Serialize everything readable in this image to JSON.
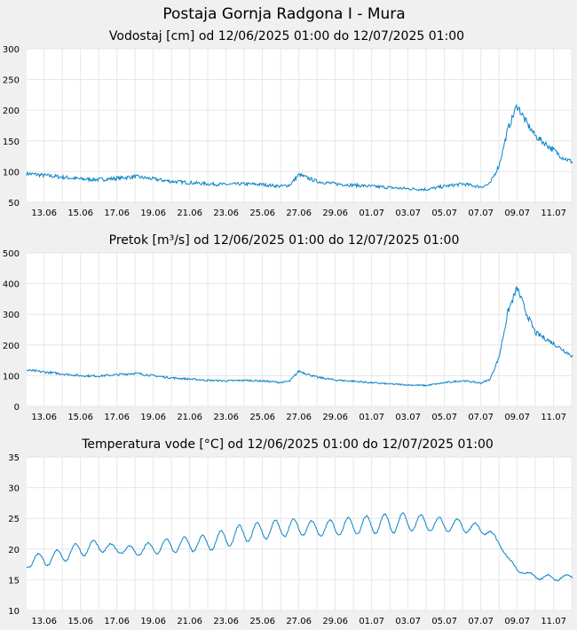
{
  "title": "Postaja Gornja Radgona I - Mura",
  "colors": {
    "line": "#0a84c8",
    "grid": "#e6e6e6",
    "plot_bg": "#ffffff",
    "page_bg": "#f0f0f0"
  },
  "chart_data": [
    {
      "type": "line",
      "title": "Vodostaj [cm] od 12/06/2025 01:00 do 12/07/2025 01:00",
      "ylim": [
        50,
        300
      ],
      "yticks": [
        "50",
        "100",
        "150",
        "200",
        "250",
        "300"
      ],
      "xticks": [
        "13.06",
        "15.06",
        "17.06",
        "19.06",
        "21.06",
        "23.06",
        "25.06",
        "27.06",
        "29.06",
        "01.07",
        "03.07",
        "05.07",
        "07.07",
        "09.07",
        "11.07"
      ],
      "grid": true,
      "series": [
        {
          "x": [
            "12.06",
            "13.06",
            "14.06",
            "15.06",
            "16.06",
            "17.06",
            "18.06",
            "19.06",
            "20.06",
            "21.06",
            "22.06",
            "23.06",
            "24.06",
            "25.06",
            "26.06",
            "26.06 12h",
            "27.06",
            "28.06",
            "29.06",
            "30.06",
            "01.07",
            "02.07",
            "03.07",
            "04.07",
            "05.07",
            "06.07",
            "07.07",
            "07.07 12h",
            "08.07",
            "08.07 12h",
            "09.07",
            "09.07 12h",
            "10.07",
            "11.07",
            "11.07 12h",
            "12.07"
          ],
          "values": [
            97,
            94,
            91,
            88,
            87,
            89,
            92,
            88,
            84,
            82,
            80,
            79,
            80,
            79,
            76,
            78,
            95,
            84,
            80,
            78,
            76,
            74,
            72,
            71,
            76,
            80,
            75,
            80,
            110,
            170,
            208,
            180,
            158,
            135,
            123,
            116
          ]
        }
      ]
    },
    {
      "type": "line",
      "title": "Pretok [m³/s] od 12/06/2025 01:00 do 12/07/2025 01:00",
      "ylim": [
        0,
        500
      ],
      "yticks": [
        "0",
        "100",
        "200",
        "300",
        "400",
        "500"
      ],
      "xticks": [
        "13.06",
        "15.06",
        "17.06",
        "19.06",
        "21.06",
        "23.06",
        "25.06",
        "27.06",
        "29.06",
        "01.07",
        "03.07",
        "05.07",
        "07.07",
        "09.07",
        "11.07"
      ],
      "grid": true,
      "series": [
        {
          "x": [
            "12.06",
            "13.06",
            "14.06",
            "15.06",
            "16.06",
            "17.06",
            "18.06",
            "19.06",
            "20.06",
            "21.06",
            "22.06",
            "23.06",
            "24.06",
            "25.06",
            "26.06",
            "26.06 12h",
            "27.06",
            "28.06",
            "29.06",
            "30.06",
            "01.07",
            "02.07",
            "03.07",
            "04.07",
            "05.07",
            "06.07",
            "07.07",
            "07.07 12h",
            "08.07",
            "08.07 12h",
            "09.07",
            "09.07 12h",
            "10.07",
            "11.07",
            "11.07 12h",
            "12.07"
          ],
          "values": [
            118,
            112,
            106,
            100,
            99,
            103,
            108,
            100,
            93,
            89,
            85,
            83,
            85,
            83,
            78,
            82,
            115,
            95,
            86,
            82,
            77,
            73,
            70,
            68,
            77,
            84,
            76,
            88,
            160,
            310,
            385,
            305,
            240,
            205,
            185,
            165
          ]
        }
      ]
    },
    {
      "type": "line",
      "title": "Temperatura vode [°C] od 12/06/2025 01:00 do 12/07/2025 01:00",
      "ylim": [
        10,
        35
      ],
      "yticks": [
        "10",
        "15",
        "20",
        "25",
        "30",
        "35"
      ],
      "xticks": [
        "13.06",
        "15.06",
        "17.06",
        "19.06",
        "21.06",
        "23.06",
        "25.06",
        "27.06",
        "29.06",
        "01.07",
        "03.07",
        "05.07",
        "07.07",
        "09.07",
        "11.07"
      ],
      "grid": true,
      "series": [
        {
          "x": [
            "12.06",
            "12.06 12h",
            "13.06",
            "14.06",
            "15.06",
            "16.06",
            "17.06",
            "18.06",
            "19.06",
            "20.06",
            "21.06",
            "22.06",
            "23.06",
            "24.06",
            "25.06",
            "26.06",
            "27.06",
            "28.06",
            "29.06",
            "30.06",
            "01.07",
            "02.07",
            "03.07",
            "04.07",
            "05.07",
            "06.07",
            "07.07",
            "07.07 12h",
            "08.07",
            "08.07 12h",
            "09.07",
            "10.07",
            "11.07",
            "12.07"
          ],
          "mean": [
            17.0,
            18.5,
            18.2,
            19.0,
            20.0,
            20.5,
            20.0,
            19.7,
            20.2,
            20.6,
            20.8,
            21.0,
            21.8,
            22.6,
            23.0,
            23.4,
            23.6,
            23.3,
            23.5,
            23.8,
            24.0,
            24.2,
            24.4,
            24.2,
            24.0,
            23.8,
            23.2,
            22.8,
            21.0,
            18.5,
            16.6,
            15.5,
            15.3,
            15.5
          ],
          "amplitude": [
            0.3,
            0.8,
            1.0,
            1.1,
            1.2,
            1.0,
            0.6,
            0.8,
            1.0,
            1.2,
            1.2,
            1.3,
            1.5,
            1.5,
            1.4,
            1.4,
            1.3,
            1.2,
            1.3,
            1.4,
            1.5,
            1.6,
            1.5,
            1.2,
            1.1,
            1.0,
            0.8,
            0.4,
            0.3,
            0.2,
            0.2,
            0.4,
            0.5,
            0.3
          ]
        }
      ]
    }
  ]
}
